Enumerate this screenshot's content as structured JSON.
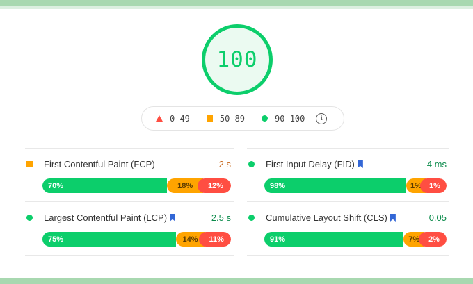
{
  "score": {
    "value": "100",
    "color": "#0cce6b"
  },
  "legend": [
    {
      "label": "0-49",
      "icon": "red-triangle-icon",
      "color": "#ff4e42"
    },
    {
      "label": "50-89",
      "icon": "orange-square-icon",
      "color": "#ffa400"
    },
    {
      "label": "90-100",
      "icon": "green-circle-icon",
      "color": "#0cce6b"
    }
  ],
  "info_icon": "i",
  "metrics": [
    {
      "name": "First Contentful Paint (FCP)",
      "value": "2 s",
      "status": "average",
      "bookmark": false,
      "dist": {
        "good": "70%",
        "avg": "18%",
        "poor": "12%"
      },
      "pct": [
        70,
        18,
        12
      ]
    },
    {
      "name": "First Input Delay (FID)",
      "value": "4 ms",
      "status": "good",
      "bookmark": true,
      "dist": {
        "good": "98%",
        "avg": "1%",
        "poor": "1%"
      },
      "pct": [
        98,
        1,
        1
      ]
    },
    {
      "name": "Largest Contentful Paint (LCP)",
      "value": "2.5 s",
      "status": "good",
      "bookmark": true,
      "dist": {
        "good": "75%",
        "avg": "14%",
        "poor": "11%"
      },
      "pct": [
        75,
        14,
        11
      ]
    },
    {
      "name": "Cumulative Layout Shift (CLS)",
      "value": "0.05",
      "status": "good",
      "bookmark": true,
      "dist": {
        "good": "91%",
        "avg": "7%",
        "poor": "2%"
      },
      "pct": [
        91,
        7,
        2
      ]
    }
  ],
  "colors": {
    "good": "#0cce6b",
    "average": "#ffa400",
    "poor": "#ff4e42",
    "average_text": "#c7661a",
    "good_text": "#0a8a4a"
  }
}
